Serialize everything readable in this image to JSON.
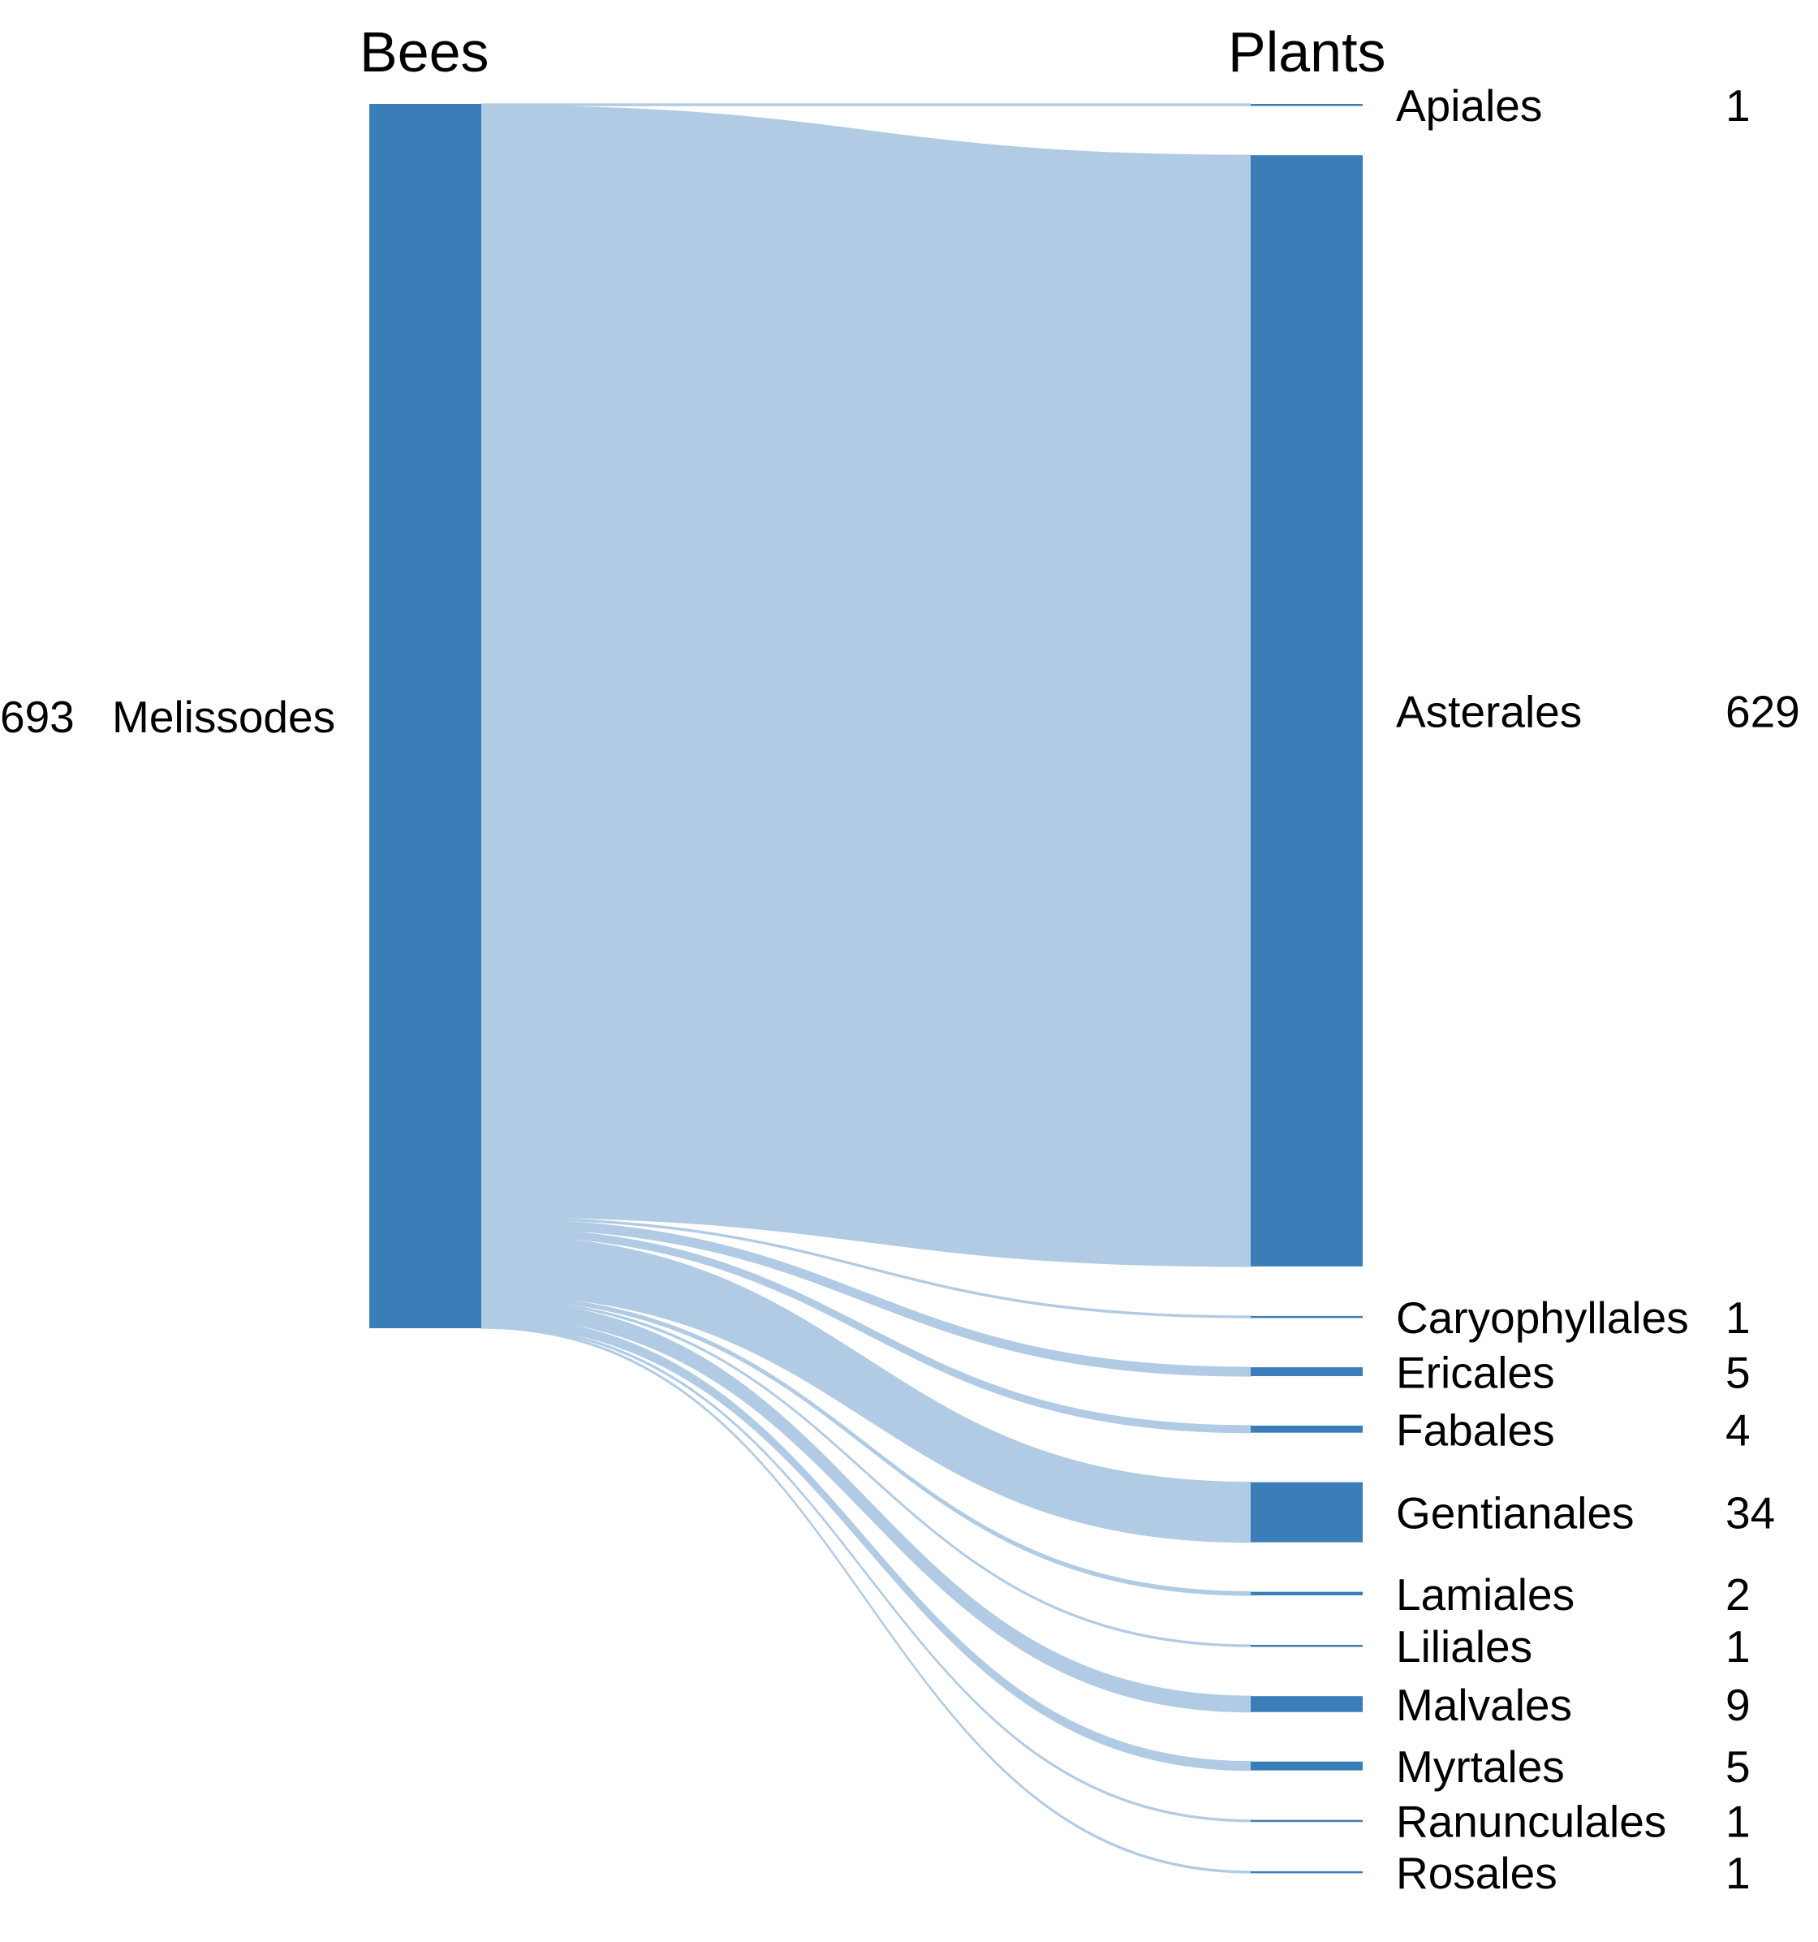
{
  "colors": {
    "node": "#3a7db8",
    "link": "#b0cbe3",
    "background": "#ffffff"
  },
  "columns": {
    "left_title": "Bees",
    "right_title": "Plants"
  },
  "chart_data": {
    "type": "sankey",
    "sources": [
      {
        "name": "Melissodes",
        "value": 693
      }
    ],
    "targets": [
      {
        "name": "Apiales",
        "value": 1
      },
      {
        "name": "Asterales",
        "value": 629
      },
      {
        "name": "Caryophyllales",
        "value": 1
      },
      {
        "name": "Ericales",
        "value": 5
      },
      {
        "name": "Fabales",
        "value": 4
      },
      {
        "name": "Gentianales",
        "value": 34
      },
      {
        "name": "Lamiales",
        "value": 2
      },
      {
        "name": "Liliales",
        "value": 1
      },
      {
        "name": "Malvales",
        "value": 9
      },
      {
        "name": "Myrtales",
        "value": 5
      },
      {
        "name": "Ranunculales",
        "value": 1
      },
      {
        "name": "Rosales",
        "value": 1
      }
    ],
    "links": [
      {
        "source": "Melissodes",
        "target": "Apiales",
        "value": 1
      },
      {
        "source": "Melissodes",
        "target": "Asterales",
        "value": 629
      },
      {
        "source": "Melissodes",
        "target": "Caryophyllales",
        "value": 1
      },
      {
        "source": "Melissodes",
        "target": "Ericales",
        "value": 5
      },
      {
        "source": "Melissodes",
        "target": "Fabales",
        "value": 4
      },
      {
        "source": "Melissodes",
        "target": "Gentianales",
        "value": 34
      },
      {
        "source": "Melissodes",
        "target": "Lamiales",
        "value": 2
      },
      {
        "source": "Melissodes",
        "target": "Liliales",
        "value": 1
      },
      {
        "source": "Melissodes",
        "target": "Malvales",
        "value": 9
      },
      {
        "source": "Melissodes",
        "target": "Myrtales",
        "value": 5
      },
      {
        "source": "Melissodes",
        "target": "Ranunculales",
        "value": 1
      },
      {
        "source": "Melissodes",
        "target": "Rosales",
        "value": 1
      }
    ]
  }
}
